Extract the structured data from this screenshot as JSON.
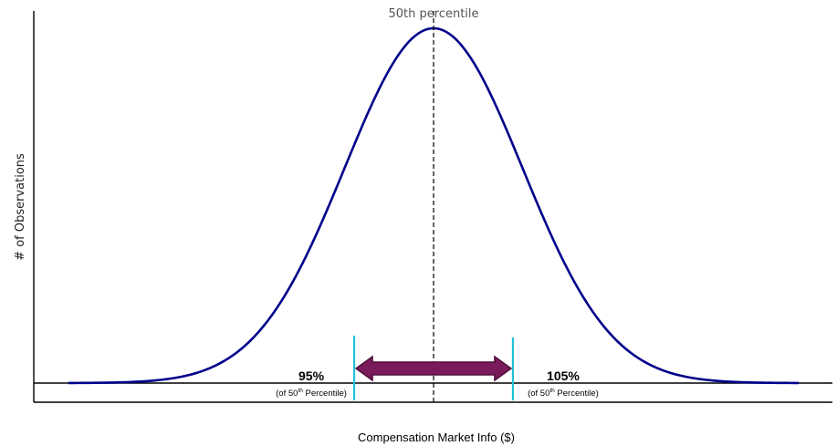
{
  "chart_data": {
    "type": "line",
    "title": "",
    "xlabel": "Compensation Market Info ($)",
    "ylabel": "# of Observations",
    "curve": {
      "distribution": "normal",
      "mean": 100,
      "sd": 5.6,
      "x_range": [
        77,
        123
      ],
      "peak_label": "50th percentile"
    },
    "markers": [
      {
        "value": 95,
        "label": "95%",
        "sublabel_prefix": "(of 50",
        "sublabel_sup": "th",
        "sublabel_suffix": " Percentile)"
      },
      {
        "value": 105,
        "label": "105%",
        "sublabel_prefix": "(of 50",
        "sublabel_sup": "th",
        "sublabel_suffix": " Percentile)"
      }
    ],
    "colors": {
      "curve": "#00008b",
      "marker_lines": "#1fc1d6",
      "arrow_fill": "#7a1a5a",
      "arrow_stroke": "#4f0f3a"
    }
  }
}
